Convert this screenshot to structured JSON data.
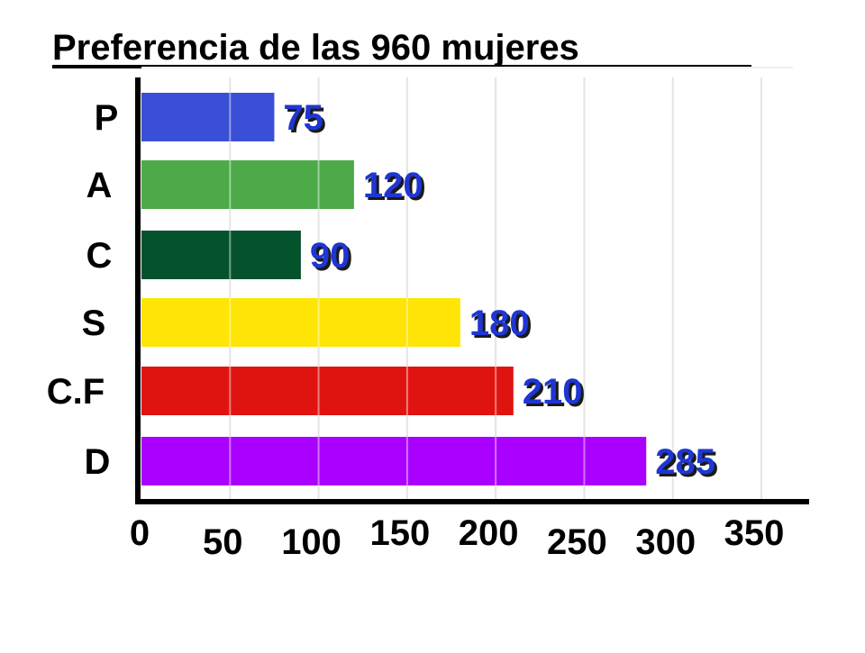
{
  "chart_data": {
    "type": "bar",
    "orientation": "horizontal",
    "title": "Preferencia de las 960 mujeres",
    "categories": [
      "P",
      "A",
      "C",
      "S",
      "C.F",
      "D"
    ],
    "values": [
      75,
      120,
      90,
      180,
      210,
      285
    ],
    "data_labels": [
      "75",
      "120",
      "90",
      "180",
      "210",
      "285"
    ],
    "bar_colors": [
      "#3a4fd6",
      "#4caa48",
      "#05532c",
      "#ffe505",
      "#df1410",
      "#aa00ff"
    ],
    "label_color": "#1f36d4",
    "label_shadow_color": "#1a1a1a",
    "x_ticks": [
      0,
      50,
      100,
      150,
      200,
      250,
      300,
      350
    ],
    "x_tick_labels": [
      "0",
      "50",
      "100",
      "150",
      "200",
      "250",
      "300",
      "350"
    ],
    "xlim": [
      0,
      350
    ],
    "xlabel": "",
    "ylabel": "",
    "grid": true,
    "grid_color": "#e4e4e4",
    "axis_color": "#000000"
  }
}
